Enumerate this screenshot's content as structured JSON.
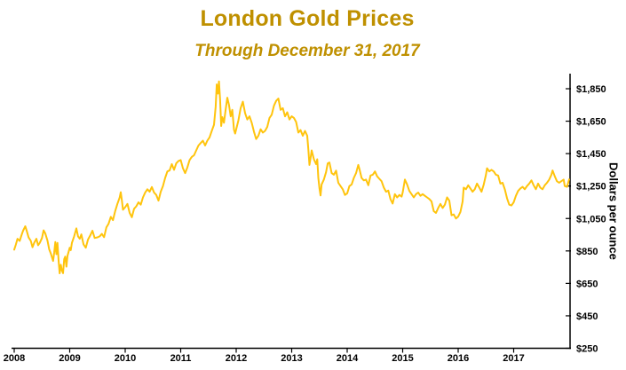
{
  "header": {
    "title": "London Gold Prices",
    "subtitle": "Through December 31, 2017"
  },
  "colors": {
    "title_text": "#BF9000",
    "line": "#FFC40D",
    "axis": "#000000"
  },
  "chart_data": {
    "type": "line",
    "title": "London Gold Prices",
    "subtitle": "Through December 31, 2017",
    "xlabel": "",
    "ylabel": "Dollars per ounce",
    "x_ticks": [
      2008,
      2009,
      2010,
      2011,
      2012,
      2013,
      2014,
      2015,
      2016,
      2017
    ],
    "y_ticks": [
      250,
      450,
      650,
      850,
      1050,
      1250,
      1450,
      1650,
      1850
    ],
    "y_tick_labels": [
      "$250",
      "$450",
      "$650",
      "$850",
      "$1,050",
      "$1,250",
      "$1,450",
      "$1,650",
      "$1,850"
    ],
    "xlim": [
      2008,
      2018.05
    ],
    "ylim": [
      250,
      1900
    ],
    "grid": false,
    "legend_position": "none",
    "series": [
      {
        "name": "gold-price",
        "points": [
          [
            2008.0,
            858
          ],
          [
            2008.03,
            890
          ],
          [
            2008.06,
            925
          ],
          [
            2008.1,
            912
          ],
          [
            2008.13,
            945
          ],
          [
            2008.16,
            975
          ],
          [
            2008.2,
            1002
          ],
          [
            2008.23,
            968
          ],
          [
            2008.26,
            933
          ],
          [
            2008.3,
            912
          ],
          [
            2008.33,
            873
          ],
          [
            2008.36,
            900
          ],
          [
            2008.4,
            925
          ],
          [
            2008.43,
            885
          ],
          [
            2008.46,
            900
          ],
          [
            2008.5,
            930
          ],
          [
            2008.53,
            977
          ],
          [
            2008.56,
            958
          ],
          [
            2008.6,
            913
          ],
          [
            2008.63,
            860
          ],
          [
            2008.66,
            833
          ],
          [
            2008.7,
            788
          ],
          [
            2008.72,
            838
          ],
          [
            2008.74,
            905
          ],
          [
            2008.76,
            830
          ],
          [
            2008.78,
            900
          ],
          [
            2008.8,
            790
          ],
          [
            2008.82,
            712
          ],
          [
            2008.84,
            765
          ],
          [
            2008.86,
            730
          ],
          [
            2008.88,
            713
          ],
          [
            2008.9,
            800
          ],
          [
            2008.92,
            815
          ],
          [
            2008.94,
            753
          ],
          [
            2008.96,
            820
          ],
          [
            2008.98,
            845
          ],
          [
            2009.0,
            870
          ],
          [
            2009.02,
            855
          ],
          [
            2009.04,
            900
          ],
          [
            2009.08,
            940
          ],
          [
            2009.12,
            989
          ],
          [
            2009.15,
            940
          ],
          [
            2009.18,
            925
          ],
          [
            2009.21,
            952
          ],
          [
            2009.25,
            890
          ],
          [
            2009.29,
            870
          ],
          [
            2009.33,
            920
          ],
          [
            2009.37,
            945
          ],
          [
            2009.41,
            975
          ],
          [
            2009.45,
            930
          ],
          [
            2009.5,
            934
          ],
          [
            2009.54,
            940
          ],
          [
            2009.58,
            955
          ],
          [
            2009.62,
            935
          ],
          [
            2009.66,
            995
          ],
          [
            2009.7,
            1018
          ],
          [
            2009.74,
            1060
          ],
          [
            2009.78,
            1040
          ],
          [
            2009.82,
            1095
          ],
          [
            2009.86,
            1140
          ],
          [
            2009.9,
            1180
          ],
          [
            2009.92,
            1212
          ],
          [
            2009.94,
            1160
          ],
          [
            2009.96,
            1104
          ],
          [
            2010.0,
            1120
          ],
          [
            2010.04,
            1140
          ],
          [
            2010.08,
            1085
          ],
          [
            2010.12,
            1058
          ],
          [
            2010.16,
            1110
          ],
          [
            2010.2,
            1125
          ],
          [
            2010.24,
            1150
          ],
          [
            2010.28,
            1135
          ],
          [
            2010.32,
            1180
          ],
          [
            2010.36,
            1210
          ],
          [
            2010.4,
            1230
          ],
          [
            2010.44,
            1215
          ],
          [
            2010.48,
            1244
          ],
          [
            2010.52,
            1210
          ],
          [
            2010.56,
            1195
          ],
          [
            2010.6,
            1160
          ],
          [
            2010.64,
            1215
          ],
          [
            2010.68,
            1250
          ],
          [
            2010.72,
            1300
          ],
          [
            2010.76,
            1340
          ],
          [
            2010.8,
            1346
          ],
          [
            2010.84,
            1385
          ],
          [
            2010.88,
            1350
          ],
          [
            2010.92,
            1390
          ],
          [
            2010.96,
            1405
          ],
          [
            2011.0,
            1410
          ],
          [
            2011.04,
            1360
          ],
          [
            2011.08,
            1330
          ],
          [
            2011.12,
            1365
          ],
          [
            2011.16,
            1410
          ],
          [
            2011.2,
            1430
          ],
          [
            2011.24,
            1440
          ],
          [
            2011.28,
            1470
          ],
          [
            2011.32,
            1500
          ],
          [
            2011.36,
            1515
          ],
          [
            2011.4,
            1530
          ],
          [
            2011.44,
            1500
          ],
          [
            2011.48,
            1530
          ],
          [
            2011.52,
            1550
          ],
          [
            2011.56,
            1590
          ],
          [
            2011.6,
            1628
          ],
          [
            2011.63,
            1740
          ],
          [
            2011.65,
            1877
          ],
          [
            2011.67,
            1820
          ],
          [
            2011.69,
            1895
          ],
          [
            2011.71,
            1780
          ],
          [
            2011.73,
            1620
          ],
          [
            2011.75,
            1675
          ],
          [
            2011.78,
            1640
          ],
          [
            2011.81,
            1720
          ],
          [
            2011.84,
            1795
          ],
          [
            2011.87,
            1750
          ],
          [
            2011.9,
            1680
          ],
          [
            2011.93,
            1720
          ],
          [
            2011.96,
            1598
          ],
          [
            2011.98,
            1574
          ],
          [
            2012.0,
            1600
          ],
          [
            2012.04,
            1655
          ],
          [
            2012.08,
            1730
          ],
          [
            2012.12,
            1770
          ],
          [
            2012.16,
            1700
          ],
          [
            2012.2,
            1660
          ],
          [
            2012.24,
            1680
          ],
          [
            2012.28,
            1640
          ],
          [
            2012.32,
            1585
          ],
          [
            2012.36,
            1540
          ],
          [
            2012.4,
            1560
          ],
          [
            2012.44,
            1600
          ],
          [
            2012.48,
            1580
          ],
          [
            2012.52,
            1590
          ],
          [
            2012.56,
            1615
          ],
          [
            2012.6,
            1670
          ],
          [
            2012.64,
            1690
          ],
          [
            2012.68,
            1745
          ],
          [
            2012.72,
            1775
          ],
          [
            2012.76,
            1790
          ],
          [
            2012.8,
            1720
          ],
          [
            2012.84,
            1730
          ],
          [
            2012.88,
            1680
          ],
          [
            2012.92,
            1705
          ],
          [
            2012.96,
            1660
          ],
          [
            2013.0,
            1680
          ],
          [
            2013.04,
            1670
          ],
          [
            2013.08,
            1645
          ],
          [
            2013.12,
            1580
          ],
          [
            2013.16,
            1595
          ],
          [
            2013.2,
            1560
          ],
          [
            2013.24,
            1590
          ],
          [
            2013.28,
            1560
          ],
          [
            2013.3,
            1480
          ],
          [
            2013.32,
            1380
          ],
          [
            2013.34,
            1420
          ],
          [
            2013.36,
            1470
          ],
          [
            2013.4,
            1415
          ],
          [
            2013.44,
            1385
          ],
          [
            2013.46,
            1415
          ],
          [
            2013.48,
            1300
          ],
          [
            2013.5,
            1235
          ],
          [
            2013.52,
            1192
          ],
          [
            2013.54,
            1260
          ],
          [
            2013.58,
            1290
          ],
          [
            2013.62,
            1335
          ],
          [
            2013.65,
            1390
          ],
          [
            2013.68,
            1395
          ],
          [
            2013.72,
            1330
          ],
          [
            2013.76,
            1320
          ],
          [
            2013.8,
            1345
          ],
          [
            2013.84,
            1270
          ],
          [
            2013.88,
            1250
          ],
          [
            2013.92,
            1230
          ],
          [
            2013.96,
            1195
          ],
          [
            2014.0,
            1205
          ],
          [
            2014.04,
            1250
          ],
          [
            2014.08,
            1260
          ],
          [
            2014.12,
            1300
          ],
          [
            2014.16,
            1330
          ],
          [
            2014.2,
            1380
          ],
          [
            2014.22,
            1355
          ],
          [
            2014.26,
            1300
          ],
          [
            2014.3,
            1285
          ],
          [
            2014.34,
            1290
          ],
          [
            2014.38,
            1255
          ],
          [
            2014.42,
            1315
          ],
          [
            2014.46,
            1320
          ],
          [
            2014.5,
            1340
          ],
          [
            2014.54,
            1310
          ],
          [
            2014.58,
            1295
          ],
          [
            2014.62,
            1280
          ],
          [
            2014.66,
            1240
          ],
          [
            2014.7,
            1215
          ],
          [
            2014.74,
            1222
          ],
          [
            2014.78,
            1170
          ],
          [
            2014.82,
            1142
          ],
          [
            2014.86,
            1200
          ],
          [
            2014.9,
            1180
          ],
          [
            2014.94,
            1195
          ],
          [
            2014.98,
            1185
          ],
          [
            2015.0,
            1210
          ],
          [
            2015.04,
            1290
          ],
          [
            2015.08,
            1260
          ],
          [
            2015.12,
            1220
          ],
          [
            2015.16,
            1200
          ],
          [
            2015.2,
            1180
          ],
          [
            2015.24,
            1200
          ],
          [
            2015.28,
            1210
          ],
          [
            2015.32,
            1190
          ],
          [
            2015.36,
            1200
          ],
          [
            2015.4,
            1190
          ],
          [
            2015.44,
            1180
          ],
          [
            2015.48,
            1170
          ],
          [
            2015.52,
            1155
          ],
          [
            2015.56,
            1095
          ],
          [
            2015.6,
            1085
          ],
          [
            2015.64,
            1115
          ],
          [
            2015.68,
            1140
          ],
          [
            2015.72,
            1115
          ],
          [
            2015.76,
            1135
          ],
          [
            2015.8,
            1180
          ],
          [
            2015.84,
            1160
          ],
          [
            2015.88,
            1070
          ],
          [
            2015.92,
            1075
          ],
          [
            2015.96,
            1050
          ],
          [
            2016.0,
            1062
          ],
          [
            2016.04,
            1090
          ],
          [
            2016.08,
            1155
          ],
          [
            2016.1,
            1240
          ],
          [
            2016.14,
            1230
          ],
          [
            2016.18,
            1255
          ],
          [
            2016.22,
            1235
          ],
          [
            2016.26,
            1215
          ],
          [
            2016.3,
            1230
          ],
          [
            2016.34,
            1265
          ],
          [
            2016.38,
            1240
          ],
          [
            2016.42,
            1215
          ],
          [
            2016.46,
            1260
          ],
          [
            2016.5,
            1320
          ],
          [
            2016.52,
            1360
          ],
          [
            2016.56,
            1340
          ],
          [
            2016.6,
            1350
          ],
          [
            2016.64,
            1340
          ],
          [
            2016.68,
            1320
          ],
          [
            2016.72,
            1315
          ],
          [
            2016.76,
            1265
          ],
          [
            2016.8,
            1270
          ],
          [
            2016.84,
            1230
          ],
          [
            2016.88,
            1175
          ],
          [
            2016.92,
            1135
          ],
          [
            2016.96,
            1130
          ],
          [
            2017.0,
            1150
          ],
          [
            2017.04,
            1190
          ],
          [
            2017.08,
            1220
          ],
          [
            2017.12,
            1235
          ],
          [
            2017.16,
            1245
          ],
          [
            2017.2,
            1230
          ],
          [
            2017.24,
            1250
          ],
          [
            2017.28,
            1265
          ],
          [
            2017.32,
            1285
          ],
          [
            2017.36,
            1255
          ],
          [
            2017.4,
            1230
          ],
          [
            2017.44,
            1265
          ],
          [
            2017.48,
            1240
          ],
          [
            2017.52,
            1230
          ],
          [
            2017.56,
            1255
          ],
          [
            2017.6,
            1270
          ],
          [
            2017.64,
            1290
          ],
          [
            2017.68,
            1320
          ],
          [
            2017.7,
            1346
          ],
          [
            2017.74,
            1310
          ],
          [
            2017.78,
            1280
          ],
          [
            2017.82,
            1270
          ],
          [
            2017.86,
            1280
          ],
          [
            2017.9,
            1290
          ],
          [
            2017.92,
            1250
          ],
          [
            2017.96,
            1245
          ],
          [
            2018.0,
            1291
          ]
        ]
      }
    ]
  }
}
